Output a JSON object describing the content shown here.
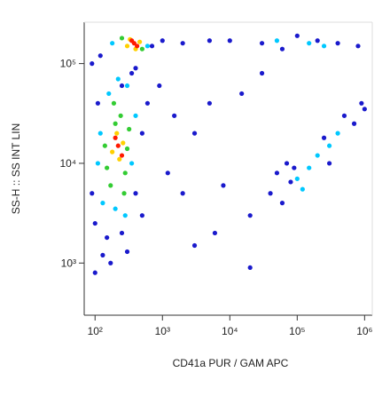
{
  "chart_data": {
    "type": "scatter",
    "x_label": "CD41a PUR / GAM APC",
    "y_label": "SS-H :: SS INT LIN",
    "x_log": true,
    "y_log": true,
    "xlim": [
      69,
      1300000
    ],
    "ylim": [
      300,
      260000
    ],
    "xticks": [
      {
        "value": 100,
        "label": "10²"
      },
      {
        "value": 1000,
        "label": "10³"
      },
      {
        "value": 10000,
        "label": "10⁴"
      },
      {
        "value": 100000,
        "label": "10⁵"
      },
      {
        "value": 1000000,
        "label": "10⁶"
      }
    ],
    "yticks": [
      {
        "value": 1000,
        "label": "10³"
      },
      {
        "value": 10000,
        "label": "10⁴"
      },
      {
        "value": 100000,
        "label": "10⁵"
      }
    ],
    "series": [
      {
        "color": "#1a1acc",
        "x": [
          100,
          150,
          250,
          90,
          400,
          500,
          700,
          1000,
          2000,
          5000,
          90,
          120,
          130,
          300,
          100,
          600,
          900,
          1500,
          3000,
          1200,
          2000,
          8000,
          20000,
          15000,
          30000,
          60000,
          100000,
          200000,
          400000,
          800000,
          30000,
          10000,
          40000,
          60000,
          80000,
          500000,
          900000,
          700000,
          300000,
          90000,
          50000,
          70000,
          250000,
          1000000,
          400,
          250,
          5000,
          20000,
          6000,
          3000,
          110,
          350,
          170,
          500
        ],
        "y": [
          2500,
          1800,
          2000,
          5000,
          5000,
          20000,
          150000,
          170000,
          160000,
          170000,
          100000,
          120000,
          1200,
          1300,
          800,
          40000,
          60000,
          30000,
          20000,
          8000,
          5000,
          6000,
          3000,
          50000,
          80000,
          140000,
          190000,
          170000,
          160000,
          150000,
          160000,
          170000,
          5000,
          4000,
          6500,
          30000,
          40000,
          25000,
          10000,
          9000,
          8000,
          10000,
          18000,
          35000,
          90000,
          60000,
          40000,
          900,
          2000,
          1500,
          40000,
          80000,
          1000,
          3000
        ]
      },
      {
        "color": "#00c8ff",
        "x": [
          130,
          350,
          160,
          300,
          120,
          200,
          600,
          180,
          280,
          220,
          150000,
          200000,
          100000,
          400000,
          120000,
          300000,
          150000,
          250000,
          50000,
          110,
          400
        ],
        "y": [
          4000,
          10000,
          50000,
          60000,
          20000,
          3500,
          150000,
          160000,
          3000,
          70000,
          9000,
          12000,
          7000,
          20000,
          5500,
          15000,
          160000,
          150000,
          170000,
          10000,
          30000
        ]
      },
      {
        "color": "#33cc33",
        "x": [
          150,
          300,
          200,
          170,
          280,
          240,
          500,
          250,
          190,
          320,
          140,
          270
        ],
        "y": [
          9000,
          14000,
          25000,
          6000,
          8000,
          30000,
          140000,
          180000,
          40000,
          22000,
          15000,
          5000
        ]
      },
      {
        "color": "#ffd000",
        "x": [
          180,
          260,
          230,
          400,
          330,
          210,
          300,
          460
        ],
        "y": [
          13000,
          16000,
          11000,
          140000,
          175000,
          20000,
          150000,
          165000
        ]
      },
      {
        "color": "#ff1a00",
        "x": [
          220,
          250,
          380,
          420,
          200,
          350
        ],
        "y": [
          15000,
          12000,
          160000,
          150000,
          18000,
          170000
        ]
      }
    ]
  }
}
